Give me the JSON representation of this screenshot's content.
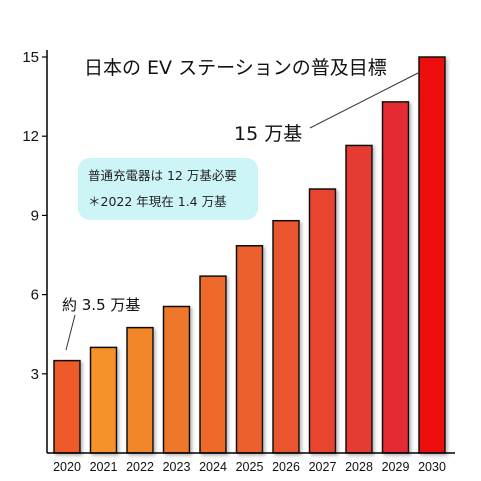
{
  "chart_data": {
    "type": "bar",
    "title": "日本の EV ステーションの普及目標",
    "categories": [
      "2020",
      "2021",
      "2022",
      "2023",
      "2024",
      "2025",
      "2026",
      "2027",
      "2028",
      "2029",
      "2030"
    ],
    "values": [
      3.5,
      4.0,
      4.75,
      5.55,
      6.7,
      7.85,
      8.8,
      10.0,
      11.65,
      13.3,
      15.0
    ],
    "yticks": [
      "3",
      "6",
      "9",
      "12",
      "15"
    ],
    "ylim": [
      0,
      15
    ],
    "xlabel": "",
    "ylabel": "",
    "grid": false,
    "colors": [
      "#ef5a2a",
      "#f5932a",
      "#f2862b",
      "#ef772b",
      "#ed6b2c",
      "#ec612d",
      "#ea552e",
      "#e8452f",
      "#e63a30",
      "#e42c31",
      "#ee1111"
    ],
    "annotations": {
      "start": "約 3.5 万基",
      "end": "15 万基",
      "note_line1": "普通充電器は 12 万基必要",
      "note_line2": "＊2022 年現在 1.4 万基"
    }
  }
}
